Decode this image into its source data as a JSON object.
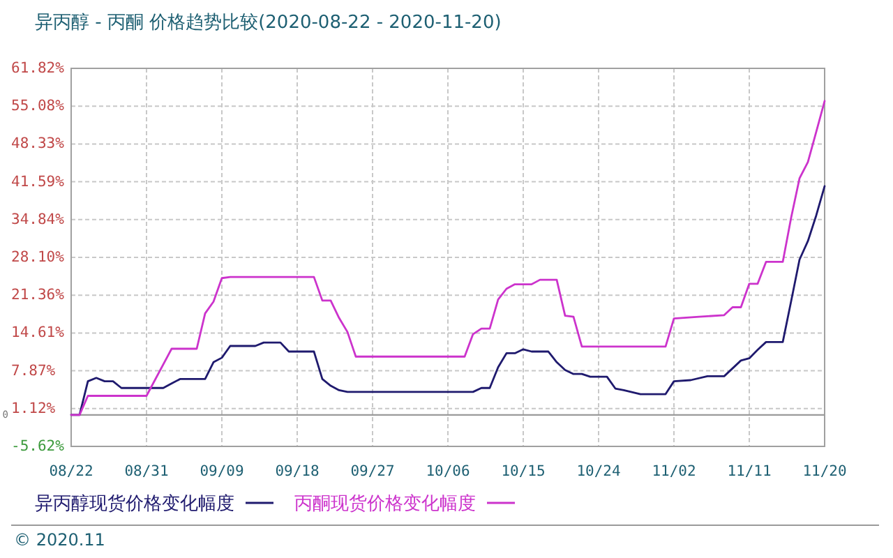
{
  "chart_data": {
    "type": "line",
    "title": "异丙醇 - 丙酮 价格趋势比较(2020-08-22 - 2020-11-20)",
    "series": [
      {
        "name": "异丙醇现货价格变化幅度",
        "color": "#1f1a6e",
        "x": [
          "2020-08-22",
          "2020-08-23",
          "2020-08-24",
          "2020-08-25",
          "2020-08-26",
          "2020-08-27",
          "2020-08-28",
          "2020-09-02",
          "2020-09-03",
          "2020-09-04",
          "2020-09-07",
          "2020-09-08",
          "2020-09-09",
          "2020-09-10",
          "2020-09-13",
          "2020-09-14",
          "2020-09-16",
          "2020-09-17",
          "2020-09-20",
          "2020-09-21",
          "2020-09-22",
          "2020-09-23",
          "2020-09-24",
          "2020-10-09",
          "2020-10-10",
          "2020-10-11",
          "2020-10-12",
          "2020-10-13",
          "2020-10-14",
          "2020-10-15",
          "2020-10-16",
          "2020-10-18",
          "2020-10-19",
          "2020-10-20",
          "2020-10-21",
          "2020-10-22",
          "2020-10-23",
          "2020-10-25",
          "2020-10-26",
          "2020-10-27",
          "2020-10-29",
          "2020-11-01",
          "2020-11-02",
          "2020-11-04",
          "2020-11-06",
          "2020-11-08",
          "2020-11-09",
          "2020-11-10",
          "2020-11-11",
          "2020-11-12",
          "2020-11-13",
          "2020-11-15",
          "2020-11-16",
          "2020-11-17",
          "2020-11-18",
          "2020-11-19",
          "2020-11-20"
        ],
        "values": [
          0,
          0,
          6.0,
          6.6,
          6.0,
          6.0,
          4.8,
          4.8,
          5.6,
          6.4,
          6.4,
          9.4,
          10.2,
          12.3,
          12.3,
          12.9,
          12.9,
          11.3,
          11.3,
          6.4,
          5.2,
          4.4,
          4.1,
          4.1,
          4.8,
          4.8,
          8.5,
          11.0,
          11.0,
          11.7,
          11.3,
          11.3,
          9.4,
          8.0,
          7.3,
          7.3,
          6.8,
          6.8,
          4.7,
          4.4,
          3.7,
          3.7,
          6.0,
          6.2,
          6.9,
          6.9,
          8.3,
          9.7,
          10.1,
          11.6,
          13.0,
          13.0,
          20.3,
          27.7,
          31.0,
          35.6,
          40.8
        ]
      },
      {
        "name": "丙酮现货价格变化幅度",
        "color": "#cc33cc",
        "x": [
          "2020-08-22",
          "2020-08-23",
          "2020-08-24",
          "2020-08-31",
          "2020-09-03",
          "2020-09-06",
          "2020-09-07",
          "2020-09-08",
          "2020-09-09",
          "2020-09-10",
          "2020-09-20",
          "2020-09-21",
          "2020-09-22",
          "2020-09-23",
          "2020-09-24",
          "2020-09-25",
          "2020-10-08",
          "2020-10-09",
          "2020-10-10",
          "2020-10-11",
          "2020-10-12",
          "2020-10-13",
          "2020-10-14",
          "2020-10-16",
          "2020-10-17",
          "2020-10-19",
          "2020-10-20",
          "2020-10-21",
          "2020-10-22",
          "2020-11-01",
          "2020-11-02",
          "2020-11-05",
          "2020-11-08",
          "2020-11-09",
          "2020-11-10",
          "2020-11-11",
          "2020-11-12",
          "2020-11-13",
          "2020-11-15",
          "2020-11-16",
          "2020-11-17",
          "2020-11-18",
          "2020-11-19",
          "2020-11-20"
        ],
        "values": [
          0,
          0,
          3.4,
          3.4,
          11.8,
          11.8,
          18.1,
          20.2,
          24.4,
          24.6,
          24.6,
          20.4,
          20.4,
          17.3,
          14.8,
          10.4,
          10.4,
          14.4,
          15.4,
          15.4,
          20.6,
          22.5,
          23.3,
          23.3,
          24.1,
          24.1,
          17.7,
          17.5,
          12.2,
          12.2,
          17.2,
          17.5,
          17.8,
          19.2,
          19.2,
          23.4,
          23.4,
          27.3,
          27.3,
          35.2,
          42.2,
          45.1,
          50.5,
          56.0
        ]
      }
    ],
    "xlim": [
      "2020-08-22",
      "2020-11-20"
    ],
    "xticks": [
      {
        "value": "2020-08-22",
        "label": "08/22"
      },
      {
        "value": "2020-08-31",
        "label": "08/31"
      },
      {
        "value": "2020-09-09",
        "label": "09/09"
      },
      {
        "value": "2020-09-18",
        "label": "09/18"
      },
      {
        "value": "2020-09-27",
        "label": "09/27"
      },
      {
        "value": "2020-10-06",
        "label": "10/06"
      },
      {
        "value": "2020-10-15",
        "label": "10/15"
      },
      {
        "value": "2020-10-24",
        "label": "10/24"
      },
      {
        "value": "2020-11-02",
        "label": "11/02"
      },
      {
        "value": "2020-11-11",
        "label": "11/11"
      },
      {
        "value": "2020-11-20",
        "label": "11/20"
      }
    ],
    "ylim": [
      -5.62,
      61.82
    ],
    "yticks": [
      {
        "value": -5.62,
        "label": "-5.62%"
      },
      {
        "value": 1.12,
        "label": "1.12%"
      },
      {
        "value": 7.87,
        "label": "7.87%"
      },
      {
        "value": 14.61,
        "label": "14.61%"
      },
      {
        "value": 21.36,
        "label": "21.36%"
      },
      {
        "value": 28.1,
        "label": "28.10%"
      },
      {
        "value": 34.84,
        "label": "34.84%"
      },
      {
        "value": 41.59,
        "label": "41.59%"
      },
      {
        "value": 48.33,
        "label": "48.33%"
      },
      {
        "value": 55.08,
        "label": "55.08%"
      },
      {
        "value": 61.82,
        "label": "61.82%"
      }
    ],
    "grid": true,
    "legend": "bottom",
    "ref_lines": [
      {
        "axis": "y",
        "value": 0,
        "label": "0",
        "color": "#9a9a9a"
      }
    ],
    "annotations": [
      "© 2020.11"
    ]
  }
}
